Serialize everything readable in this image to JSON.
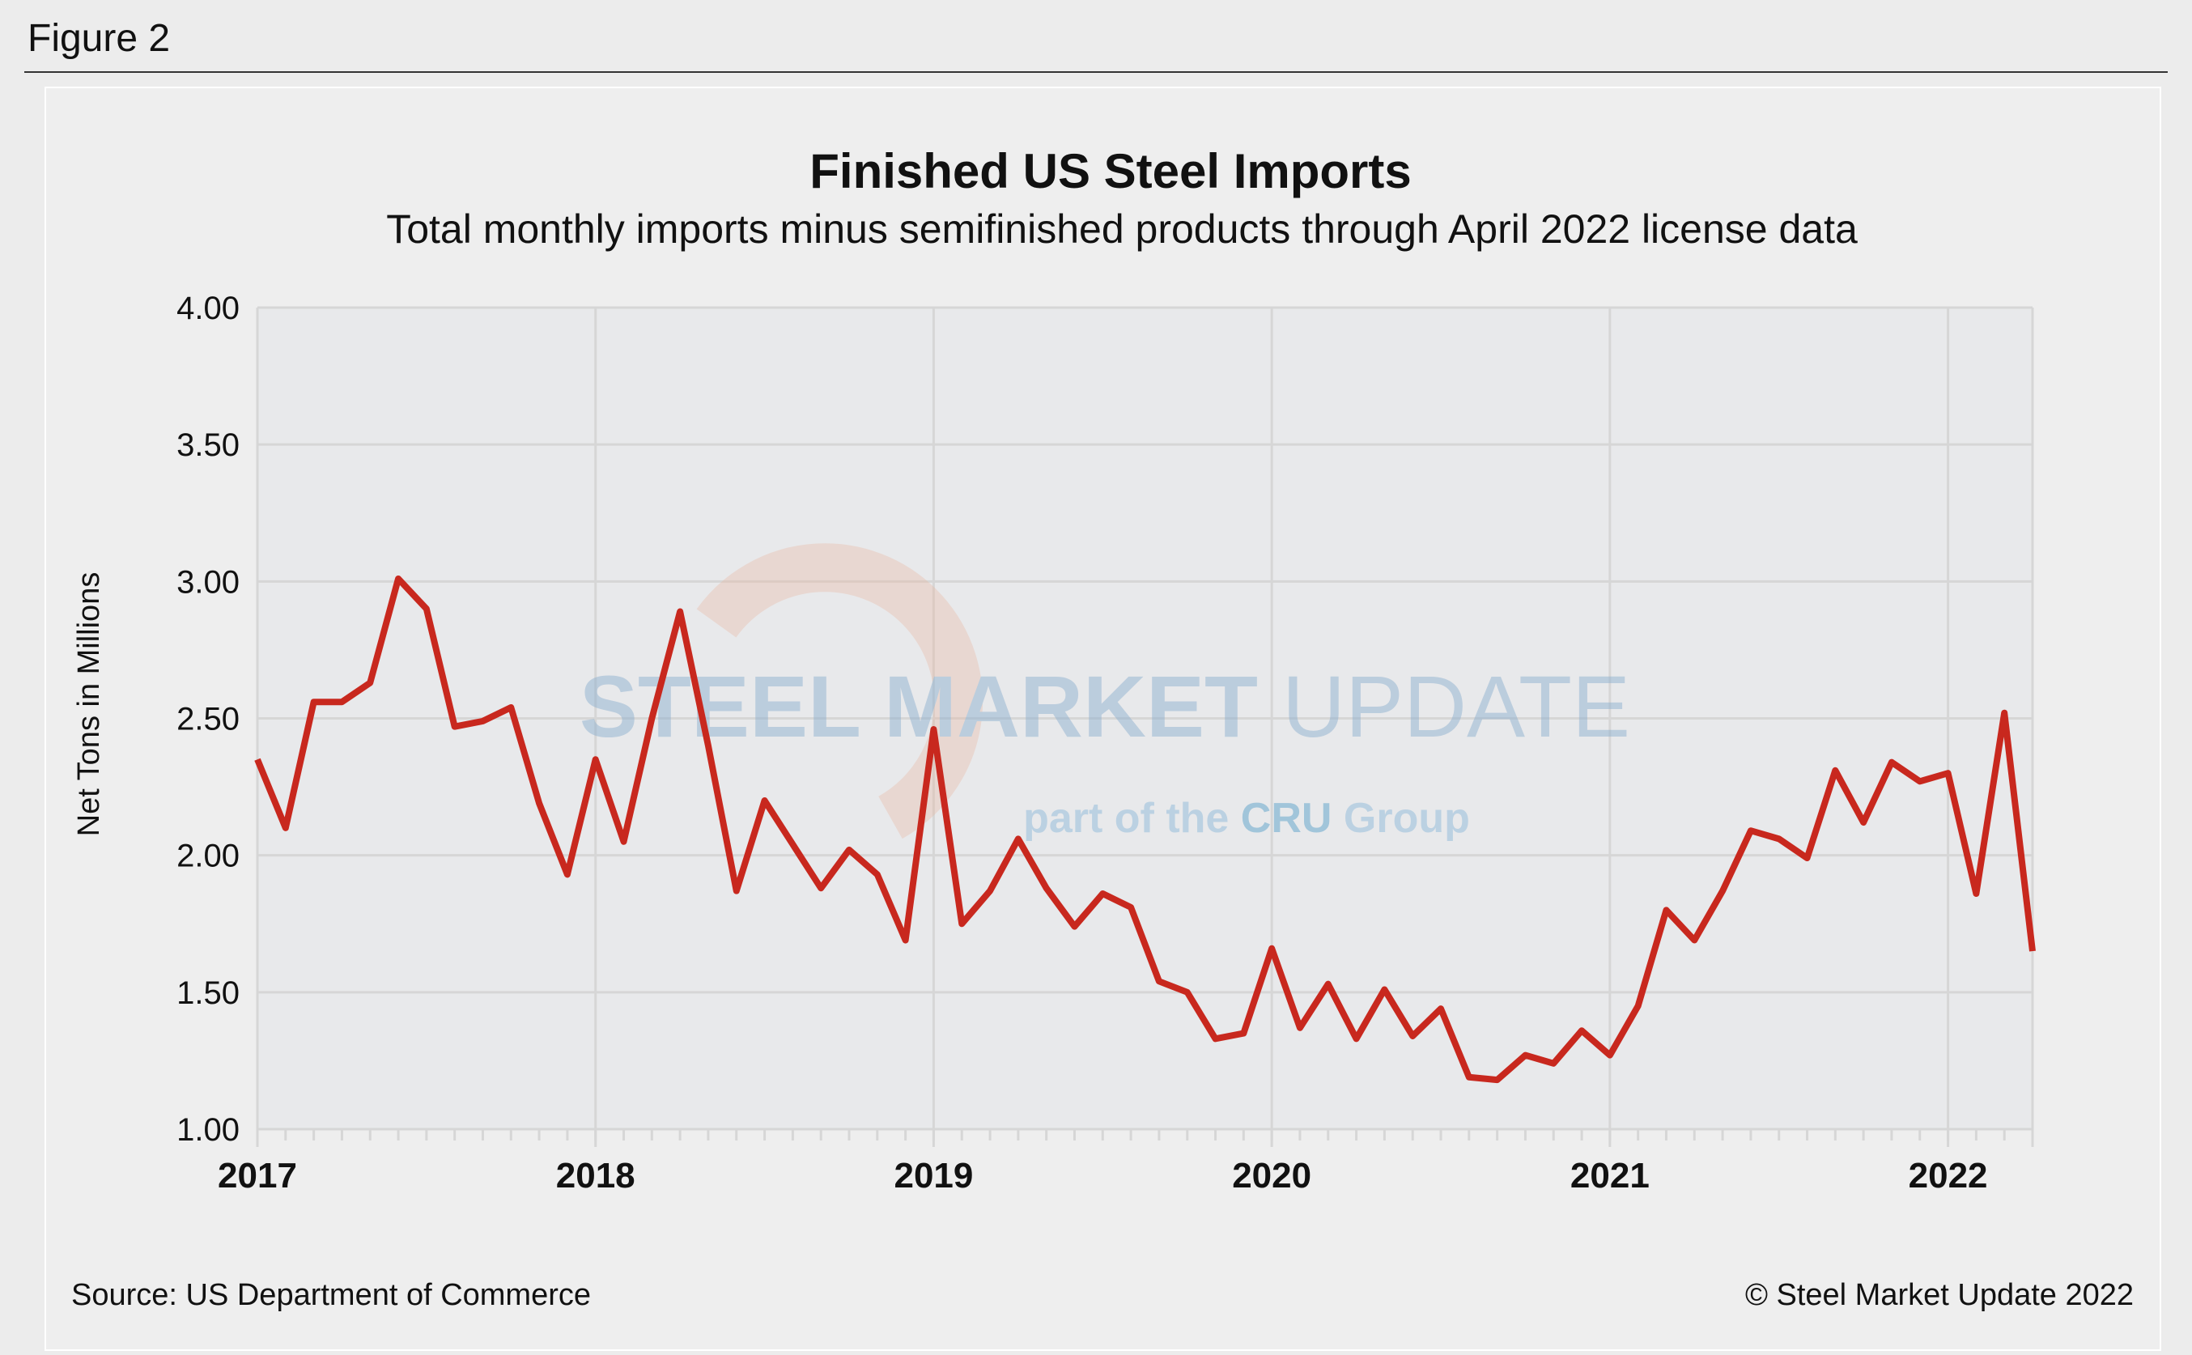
{
  "figure_label": "Figure 2",
  "footer": {
    "source": "Source: US Department of Commerce",
    "copyright": "© Steel Market Update 2022"
  },
  "watermark": {
    "line1_bold": "STEEL MARKET",
    "line1_light": "UPDATE",
    "line2": "part of the",
    "badge": "CRU",
    "line2_end": "Group"
  },
  "chart_data": {
    "type": "line",
    "title": "Finished US Steel Imports",
    "subtitle": "Total monthly imports minus semifinished products through April 2022 license data",
    "xlabel": "",
    "ylabel": "Net Tons in Millions",
    "ylim": [
      1.0,
      4.0
    ],
    "yticks": [
      "1.00",
      "1.50",
      "2.00",
      "2.50",
      "3.00",
      "3.50",
      "4.00"
    ],
    "xtick_labels": [
      "2017",
      "2018",
      "2019",
      "2020",
      "2021",
      "2022"
    ],
    "x_start": "2017-01",
    "x_end": "2022-04",
    "grid": true,
    "line_color": "#c8281e",
    "series": [
      {
        "values": [
          2.35,
          2.1,
          2.56,
          2.56,
          2.63,
          3.01,
          2.9,
          2.47,
          2.49,
          2.54,
          2.19,
          1.93,
          2.35,
          2.05,
          2.5,
          2.89,
          2.4,
          1.87,
          2.2,
          2.04,
          1.88,
          2.02,
          1.93,
          1.69,
          2.46,
          1.75,
          1.87,
          2.06,
          1.88,
          1.74,
          1.86,
          1.81,
          1.54,
          1.5,
          1.33,
          1.35,
          1.66,
          1.37,
          1.53,
          1.33,
          1.51,
          1.34,
          1.44,
          1.19,
          1.18,
          1.27,
          1.24,
          1.36,
          1.27,
          1.45,
          1.8,
          1.69,
          1.87,
          2.09,
          2.06,
          1.99,
          2.31,
          2.12,
          2.34,
          2.27,
          2.3,
          1.86,
          2.52,
          1.65
        ]
      }
    ]
  }
}
